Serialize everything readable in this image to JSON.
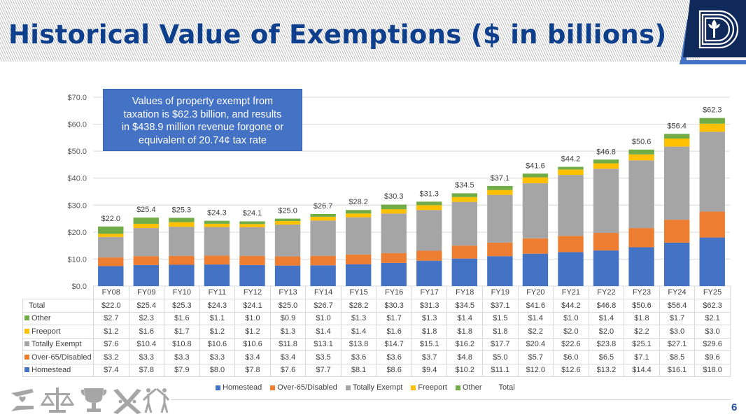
{
  "slide": {
    "title": "Historical Value of Exemptions ($ in billions)",
    "page_number": "6",
    "logo": "dallas-county-d-logo",
    "callout_lines": [
      "Values of property exempt from",
      "taxation is $62.3 billion, and results",
      "in $438.9 million revenue forgone or",
      "equivalent of 20.74¢ tax rate"
    ],
    "footer_icons": [
      "caring-hands-heart-icon",
      "scales-of-justice-icon",
      "trophy-icon",
      "collaboration-knot-icon",
      "people-high-five-icon"
    ]
  },
  "chart_data": {
    "type": "bar",
    "stacked": true,
    "title": "Historical Value of Exemptions ($ in billions)",
    "xlabel": "",
    "ylabel": "",
    "ylim": [
      0,
      70
    ],
    "yticks": [
      0,
      10,
      20,
      30,
      40,
      50,
      60,
      70
    ],
    "ytick_labels": [
      "$0.0",
      "$10.0",
      "$20.0",
      "$30.0",
      "$40.0",
      "$50.0",
      "$60.0",
      "$70.0"
    ],
    "grid": true,
    "legend_position": "bottom",
    "categories": [
      "FY08",
      "FY09",
      "FY10",
      "FY11",
      "FY12",
      "FY13",
      "FY14",
      "FY15",
      "FY16",
      "FY17",
      "FY18",
      "FY19",
      "FY20",
      "FY21",
      "FY22",
      "FY23",
      "FY24",
      "FY25"
    ],
    "series": [
      {
        "name": "Homestead",
        "color": "#4472c4",
        "values": [
          7.4,
          7.8,
          7.9,
          8.0,
          7.8,
          7.6,
          7.7,
          8.1,
          8.6,
          9.4,
          10.2,
          11.1,
          12.0,
          12.6,
          13.2,
          14.4,
          16.1,
          18.0
        ]
      },
      {
        "name": "Over-65/Disabled",
        "color": "#ed7d31",
        "values": [
          3.2,
          3.3,
          3.3,
          3.3,
          3.4,
          3.4,
          3.5,
          3.6,
          3.6,
          3.7,
          4.8,
          5.0,
          5.7,
          6.0,
          6.5,
          7.1,
          8.5,
          9.6
        ]
      },
      {
        "name": "Totally Exempt",
        "color": "#a5a5a5",
        "values": [
          7.6,
          10.4,
          10.8,
          10.6,
          10.6,
          11.8,
          13.1,
          13.8,
          14.7,
          15.1,
          16.2,
          17.7,
          20.4,
          22.6,
          23.8,
          25.1,
          27.1,
          29.6
        ]
      },
      {
        "name": "Freeport",
        "color": "#ffc000",
        "values": [
          1.2,
          1.6,
          1.7,
          1.2,
          1.2,
          1.3,
          1.4,
          1.4,
          1.6,
          1.8,
          1.8,
          1.8,
          2.2,
          2.0,
          2.0,
          2.2,
          3.0,
          3.0
        ]
      },
      {
        "name": "Other",
        "color": "#70ad47",
        "values": [
          2.7,
          2.3,
          1.6,
          1.1,
          1.0,
          0.9,
          1.0,
          1.3,
          1.7,
          1.3,
          1.4,
          1.5,
          1.4,
          1.0,
          1.4,
          1.8,
          1.7,
          2.1
        ]
      }
    ],
    "totals": {
      "name": "Total",
      "values": [
        22.0,
        25.4,
        25.3,
        24.3,
        24.1,
        25.0,
        26.7,
        28.2,
        30.3,
        31.3,
        34.5,
        37.1,
        41.6,
        44.2,
        46.8,
        50.6,
        56.4,
        62.3
      ]
    },
    "total_labels": [
      "$22.0",
      "$25.4",
      "$25.3",
      "$24.3",
      "$24.1",
      "$25.0",
      "$26.7",
      "$28.2",
      "$30.3",
      "$31.3",
      "$34.5",
      "$37.1",
      "$41.6",
      "$44.2",
      "$46.8",
      "$50.6",
      "$56.4",
      "$62.3"
    ],
    "table": {
      "row_order": [
        "Total",
        "Other",
        "Freeport",
        "Totally Exempt",
        "Over-65/Disabled",
        "Homestead"
      ],
      "rows": [
        {
          "label": "Total",
          "color": null,
          "cells": [
            "$22.0",
            "$25.4",
            "$25.3",
            "$24.3",
            "$24.1",
            "$25.0",
            "$26.7",
            "$28.2",
            "$30.3",
            "$31.3",
            "$34.5",
            "$37.1",
            "$41.6",
            "$44.2",
            "$46.8",
            "$50.6",
            "$56.4",
            "$62.3"
          ]
        },
        {
          "label": "Other",
          "color": "#70ad47",
          "cells": [
            "$2.7",
            "$2.3",
            "$1.6",
            "$1.1",
            "$1.0",
            "$0.9",
            "$1.0",
            "$1.3",
            "$1.7",
            "$1.3",
            "$1.4",
            "$1.5",
            "$1.4",
            "$1.0",
            "$1.4",
            "$1.8",
            "$1.7",
            "$2.1"
          ]
        },
        {
          "label": "Freeport",
          "color": "#ffc000",
          "cells": [
            "$1.2",
            "$1.6",
            "$1.7",
            "$1.2",
            "$1.2",
            "$1.3",
            "$1.4",
            "$1.4",
            "$1.6",
            "$1.8",
            "$1.8",
            "$1.8",
            "$2.2",
            "$2.0",
            "$2.0",
            "$2.2",
            "$3.0",
            "$3.0"
          ]
        },
        {
          "label": "Totally Exempt",
          "color": "#a5a5a5",
          "cells": [
            "$7.6",
            "$10.4",
            "$10.8",
            "$10.6",
            "$10.6",
            "$11.8",
            "$13.1",
            "$13.8",
            "$14.7",
            "$15.1",
            "$16.2",
            "$17.7",
            "$20.4",
            "$22.6",
            "$23.8",
            "$25.1",
            "$27.1",
            "$29.6"
          ]
        },
        {
          "label": "Over-65/Disabled",
          "color": "#ed7d31",
          "cells": [
            "$3.2",
            "$3.3",
            "$3.3",
            "$3.3",
            "$3.4",
            "$3.4",
            "$3.5",
            "$3.6",
            "$3.6",
            "$3.7",
            "$4.8",
            "$5.0",
            "$5.7",
            "$6.0",
            "$6.5",
            "$7.1",
            "$8.5",
            "$9.6"
          ]
        },
        {
          "label": "Homestead",
          "color": "#4472c4",
          "cells": [
            "$7.4",
            "$7.8",
            "$7.9",
            "$8.0",
            "$7.8",
            "$7.6",
            "$7.7",
            "$8.1",
            "$8.6",
            "$9.4",
            "$10.2",
            "$11.1",
            "$12.0",
            "$12.6",
            "$13.2",
            "$14.4",
            "$16.1",
            "$18.0"
          ]
        }
      ]
    },
    "legend": [
      {
        "label": "Homestead",
        "color": "#4472c4"
      },
      {
        "label": "Over-65/Disabled",
        "color": "#ed7d31"
      },
      {
        "label": "Totally Exempt",
        "color": "#a5a5a5"
      },
      {
        "label": "Freeport",
        "color": "#ffc000"
      },
      {
        "label": "Other",
        "color": "#70ad47"
      },
      {
        "label": "Total",
        "color": null
      }
    ]
  }
}
